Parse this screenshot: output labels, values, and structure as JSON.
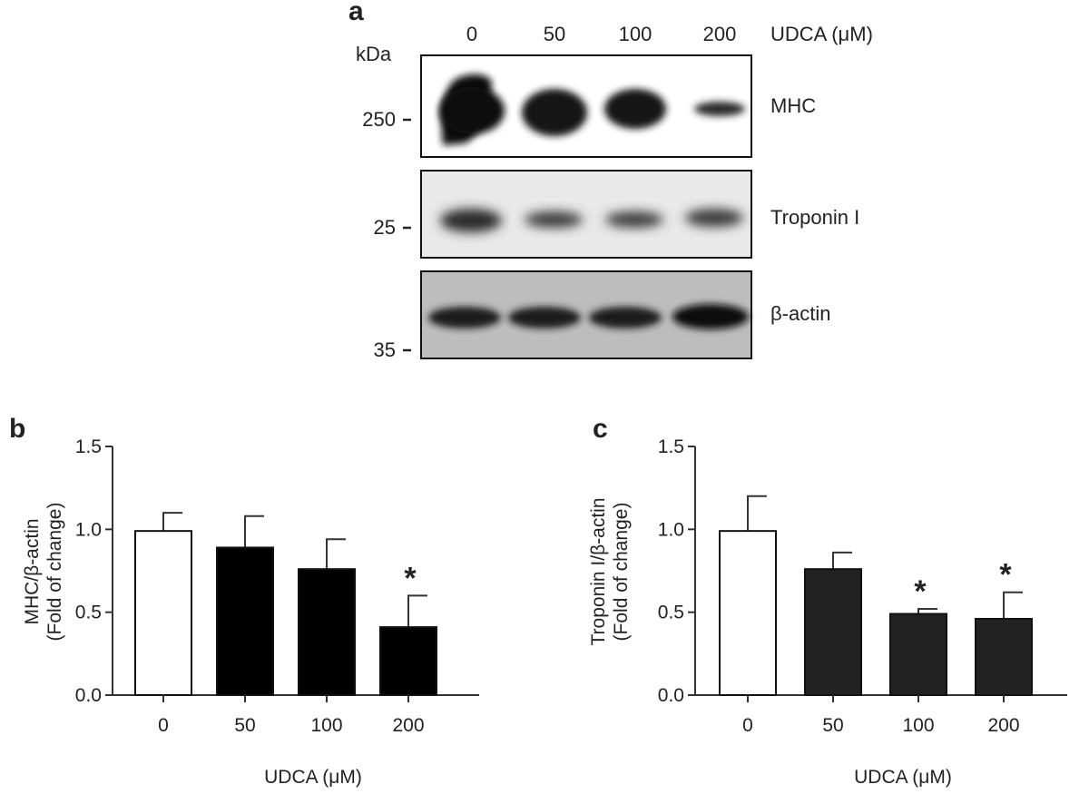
{
  "figure": {
    "panels": [
      {
        "letter": "a",
        "type": "western-blot",
        "header_label": "UDCA (μM)",
        "lanes": [
          "0",
          "50",
          "100",
          "200"
        ],
        "kda_title": "kDa",
        "markers": [
          "250",
          "25",
          "35"
        ],
        "bands": [
          {
            "name": "MHC",
            "intensity": [
              1.0,
              0.95,
              0.9,
              0.45
            ]
          },
          {
            "name": "Troponin I",
            "intensity": [
              0.9,
              0.6,
              0.55,
              0.55
            ]
          },
          {
            "name": "β-actin",
            "intensity": [
              0.9,
              0.9,
              0.9,
              1.0
            ]
          }
        ]
      }
    ]
  },
  "chart_data": [
    {
      "panel": "b",
      "type": "bar",
      "categories": [
        "0",
        "50",
        "100",
        "200"
      ],
      "values": [
        0.99,
        0.89,
        0.76,
        0.41
      ],
      "errors": [
        0.11,
        0.19,
        0.18,
        0.19
      ],
      "significant": [
        false,
        false,
        false,
        true
      ],
      "significance_marker": "*",
      "bar_colors": [
        "#ffffff",
        "#000000",
        "#000000",
        "#000000"
      ],
      "ylabel_line1": "MHC/β-actin",
      "ylabel_line2": "(Fold of change)",
      "xlabel": "UDCA (μM)",
      "ylim": [
        0,
        1.5
      ],
      "yticks": [
        "0.0",
        "0.5",
        "1.0",
        "1.5"
      ]
    },
    {
      "panel": "c",
      "type": "bar",
      "categories": [
        "0",
        "50",
        "100",
        "200"
      ],
      "values": [
        0.99,
        0.76,
        0.49,
        0.46
      ],
      "errors": [
        0.21,
        0.1,
        0.03,
        0.16
      ],
      "significant": [
        false,
        false,
        true,
        true
      ],
      "significance_marker": "*",
      "bar_colors": [
        "#ffffff",
        "#222222",
        "#222222",
        "#222222"
      ],
      "ylabel_line1": "Troponin I/β-actin",
      "ylabel_line2": "(Fold of change)",
      "xlabel": "UDCA (μM)",
      "ylim": [
        0,
        1.5
      ],
      "yticks": [
        "0.0",
        "0.5",
        "1.0",
        "1.5"
      ]
    }
  ]
}
